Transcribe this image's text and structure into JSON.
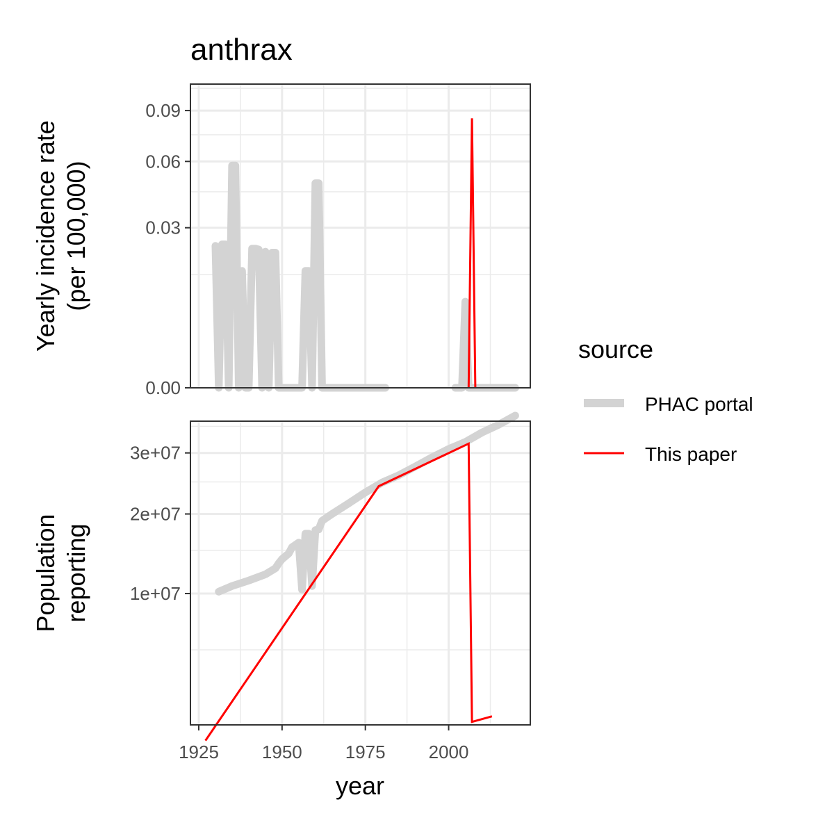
{
  "chart_data": {
    "type": "line",
    "title": "anthrax",
    "xlabel": "year",
    "x_ticks": [
      1925,
      1950,
      1975,
      2000
    ],
    "x_tick_labels": [
      "1925",
      "1950",
      "1975",
      "2000"
    ],
    "xlim": [
      1922.5,
      2024.5
    ],
    "legend": {
      "title": "source",
      "placement": "right",
      "entries": [
        {
          "label": "PHAC portal",
          "color": "#d3d3d3"
        },
        {
          "label": "This paper",
          "color": "#ff0000"
        }
      ]
    },
    "panels": [
      {
        "id": "incidence",
        "ylabel_lines": [
          "Yearly incidence rate",
          "(per 100,000)"
        ],
        "scale": "sqrt",
        "ylim": [
          0,
          0.108
        ],
        "y_ticks": [
          0,
          0.03,
          0.06,
          0.09
        ],
        "y_tick_labels": [
          "0.00",
          "0.03",
          "0.06",
          "0.09"
        ],
        "grid": true,
        "series": [
          {
            "name": "PHAC portal",
            "color": "#d3d3d3",
            "points": [
              [
                1930,
                0.0236
              ],
              [
                1931,
                0
              ],
              [
                1932,
                0.0241
              ],
              [
                1933,
                0.0241
              ],
              [
                1934,
                0
              ],
              [
                1935,
                0.0578
              ],
              [
                1936,
                0.0578
              ],
              [
                1937,
                0
              ],
              [
                1938,
                0.016
              ],
              [
                1939,
                0
              ],
              [
                1940,
                0
              ],
              [
                1941,
                0.0227
              ],
              [
                1942,
                0.0227
              ],
              [
                1943,
                0.0224
              ],
              [
                1944,
                0
              ],
              [
                1945,
                0.0217
              ],
              [
                1946,
                0
              ],
              [
                1947,
                0.0214
              ],
              [
                1948,
                0.0214
              ],
              [
                1949,
                0
              ],
              [
                1950,
                0
              ],
              [
                1951,
                0
              ],
              [
                1952,
                0
              ],
              [
                1953,
                0
              ],
              [
                1954,
                0
              ],
              [
                1955,
                0
              ],
              [
                1956,
                0
              ],
              [
                1957,
                0.016
              ],
              [
                1958,
                0.016
              ],
              [
                1959,
                0
              ],
              [
                1960,
                0.049
              ],
              [
                1961,
                0.049
              ],
              [
                1962,
                0
              ],
              [
                1970,
                0
              ],
              [
                1980,
                0
              ],
              [
                1981,
                0
              ]
            ]
          },
          {
            "name": "PHAC portal",
            "color": "#d3d3d3",
            "points": [
              [
                2002,
                0
              ],
              [
                2004,
                0
              ],
              [
                2005,
                0.0087
              ],
              [
                2006,
                0
              ],
              [
                2010,
                0
              ],
              [
                2020,
                0
              ]
            ]
          },
          {
            "name": "This paper",
            "color": "#ff0000",
            "points": [
              [
                2006,
                0
              ],
              [
                2007,
                0.085
              ],
              [
                2008,
                0
              ]
            ]
          }
        ]
      },
      {
        "id": "population",
        "ylabel_lines": [
          "Population",
          "reporting"
        ],
        "scale": "sqrt",
        "ylim": [
          1000000,
          36000000
        ],
        "y_ticks": [
          10000000,
          20000000,
          30000000
        ],
        "y_tick_labels": [
          "1e+07",
          "2e+07",
          "3e+07"
        ],
        "grid": true,
        "series": [
          {
            "name": "PHAC portal",
            "color": "#d3d3d3",
            "points": [
              [
                1931,
                10200000
              ],
              [
                1935,
                10800000
              ],
              [
                1940,
                11400000
              ],
              [
                1945,
                12100000
              ],
              [
                1948,
                12800000
              ],
              [
                1949,
                13400000
              ],
              [
                1950,
                13900000
              ],
              [
                1952,
                14600000
              ],
              [
                1953,
                15400000
              ],
              [
                1955,
                16000000
              ],
              [
                1956,
                10400000
              ],
              [
                1957,
                17200000
              ],
              [
                1958,
                17200000
              ],
              [
                1959,
                10800000
              ],
              [
                1960,
                17700000
              ],
              [
                1961,
                17800000
              ],
              [
                1962,
                19000000
              ],
              [
                1965,
                20000000
              ],
              [
                1970,
                21600000
              ],
              [
                1975,
                23300000
              ],
              [
                1980,
                24900000
              ],
              [
                1985,
                26100000
              ],
              [
                1990,
                27600000
              ],
              [
                1995,
                29200000
              ],
              [
                2000,
                30700000
              ],
              [
                2005,
                32000000
              ],
              [
                2010,
                33800000
              ],
              [
                2015,
                35300000
              ],
              [
                2020,
                37100000
              ]
            ]
          },
          {
            "name": "This paper",
            "color": "#ff0000",
            "points": [
              [
                1927,
                550000
              ],
              [
                1979,
                24300000
              ],
              [
                2006,
                31700000
              ],
              [
                2007,
                1100000
              ],
              [
                2013,
                1300000
              ]
            ]
          }
        ]
      }
    ]
  }
}
